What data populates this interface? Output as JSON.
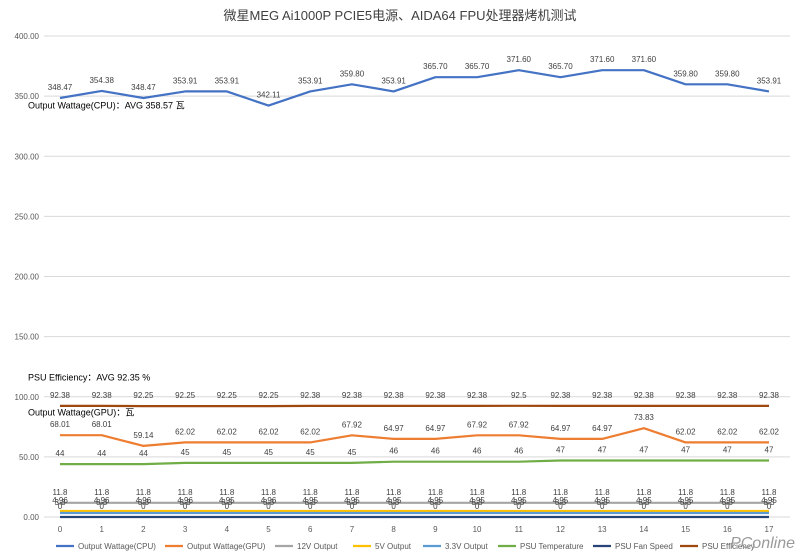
{
  "chart_data": {
    "type": "line",
    "title": "微星MEG Ai1000P PCIE5电源、AIDA64 FPU处理器烤机测试",
    "xlabel": "",
    "ylabel": "",
    "x": [
      0,
      1,
      2,
      3,
      4,
      5,
      6,
      7,
      8,
      9,
      10,
      11,
      12,
      13,
      14,
      15,
      16,
      17
    ],
    "ylim": [
      0,
      400
    ],
    "yticks": [
      "0.00",
      "50.00",
      "100.00",
      "150.00",
      "200.00",
      "250.00",
      "300.00",
      "350.00",
      "400.00"
    ],
    "grid": true,
    "legend_position": "bottom",
    "series": [
      {
        "name": "Output Wattage(CPU)",
        "color": "#4472c4",
        "show_labels": true,
        "label_pos": "above",
        "labels": [
          "348.47",
          "354.38",
          "348.47",
          "353.91",
          "353.91",
          "342.11",
          "353.91",
          "359.80",
          "353.91",
          "365.70",
          "365.70",
          "371.60",
          "365.70",
          "371.60",
          "371.60",
          "359.80",
          "359.80",
          "353.91"
        ],
        "values": [
          348.47,
          354.38,
          348.47,
          353.91,
          353.91,
          342.11,
          353.91,
          359.8,
          353.91,
          365.7,
          365.7,
          371.6,
          365.7,
          371.6,
          371.6,
          359.8,
          359.8,
          353.91
        ]
      },
      {
        "name": "Output Wattage(GPU)",
        "color": "#ed7d31",
        "show_labels": true,
        "label_pos": "above",
        "labels": [
          "68.01",
          "68.01",
          "59.14",
          "62.02",
          "62.02",
          "62.02",
          "62.02",
          "67.92",
          "64.97",
          "64.97",
          "67.92",
          "67.92",
          "64.97",
          "64.97",
          "73.83",
          "62.02",
          "62.02",
          "62.02"
        ],
        "values": [
          68.01,
          68.01,
          59.14,
          62.02,
          62.02,
          62.02,
          62.02,
          67.92,
          64.97,
          64.97,
          67.92,
          67.92,
          64.97,
          64.97,
          73.83,
          62.02,
          62.02,
          62.02
        ]
      },
      {
        "name": "12V Output",
        "color": "#a5a5a5",
        "show_labels": true,
        "label_pos": "above",
        "labels": [
          "11.8",
          "11.8",
          "11.8",
          "11.8",
          "11.8",
          "11.8",
          "11.8",
          "11.8",
          "11.8",
          "11.8",
          "11.8",
          "11.8",
          "11.8",
          "11.8",
          "11.8",
          "11.8",
          "11.8",
          "11.8"
        ],
        "values": [
          11.8,
          11.8,
          11.8,
          11.8,
          11.8,
          11.8,
          11.8,
          11.8,
          11.8,
          11.8,
          11.8,
          11.8,
          11.8,
          11.8,
          11.8,
          11.8,
          11.8,
          11.8
        ]
      },
      {
        "name": "5V Output",
        "color": "#ffc000",
        "show_labels": true,
        "label_pos": "above",
        "labels": [
          "4.96",
          "4.96",
          "4.96",
          "4.96",
          "4.95",
          "4.96",
          "4.95",
          "4.95",
          "4.95",
          "4.95",
          "4.95",
          "4.95",
          "4.95",
          "4.95",
          "4.95",
          "4.95",
          "4.95",
          "4.95"
        ],
        "values": [
          4.96,
          4.96,
          4.96,
          4.96,
          4.95,
          4.96,
          4.95,
          4.95,
          4.95,
          4.95,
          4.95,
          4.95,
          4.95,
          4.95,
          4.95,
          4.95,
          4.95,
          4.95
        ]
      },
      {
        "name": "3.3V Output",
        "color": "#5b9bd5",
        "show_labels": true,
        "label_pos": "above",
        "labels": [
          "3.3",
          "3.3",
          "3.3",
          "3.3",
          "3.3",
          "3.3",
          "3.3",
          "3.3",
          "3.3",
          "3.3",
          "3.3",
          "3.3",
          "3.3",
          "3.3",
          "3.3",
          "3.3",
          "3.3",
          "3.3"
        ],
        "values": [
          3.3,
          3.3,
          3.3,
          3.3,
          3.3,
          3.3,
          3.3,
          3.3,
          3.3,
          3.3,
          3.3,
          3.3,
          3.3,
          3.3,
          3.3,
          3.3,
          3.3,
          3.3
        ]
      },
      {
        "name": "PSU Temperature",
        "color": "#70ad47",
        "show_labels": true,
        "label_pos": "above",
        "labels": [
          "44",
          "44",
          "44",
          "45",
          "45",
          "45",
          "45",
          "45",
          "46",
          "46",
          "46",
          "46",
          "47",
          "47",
          "47",
          "47",
          "47",
          "47"
        ],
        "values": [
          44,
          44,
          44,
          45,
          45,
          45,
          45,
          45,
          46,
          46,
          46,
          46,
          47,
          47,
          47,
          47,
          47,
          47
        ]
      },
      {
        "name": "PSU Fan Speed",
        "color": "#264478",
        "show_labels": true,
        "label_pos": "above",
        "labels": [
          "0",
          "0",
          "0",
          "0",
          "0",
          "0",
          "0",
          "0",
          "0",
          "0",
          "0",
          "0",
          "0",
          "0",
          "0",
          "0",
          "0",
          "0"
        ],
        "values": [
          0,
          0,
          0,
          0,
          0,
          0,
          0,
          0,
          0,
          0,
          0,
          0,
          0,
          0,
          0,
          0,
          0,
          0
        ]
      },
      {
        "name": "PSU Efficiency",
        "color": "#9e480e",
        "show_labels": true,
        "label_pos": "above",
        "labels": [
          "92.38",
          "92.38",
          "92.25",
          "92.25",
          "92.25",
          "92.25",
          "92.38",
          "92.38",
          "92.38",
          "92.38",
          "92.38",
          "92.5",
          "92.38",
          "92.38",
          "92.38",
          "92.38",
          "92.38",
          "92.38"
        ],
        "values": [
          92.38,
          92.38,
          92.25,
          92.25,
          92.25,
          92.25,
          92.38,
          92.38,
          92.38,
          92.38,
          92.38,
          92.5,
          92.38,
          92.38,
          92.38,
          92.38,
          92.38,
          92.38
        ]
      }
    ],
    "annotations": [
      {
        "text": "Output Wattage(CPU)：AVG 358.57 瓦",
        "y": 342
      },
      {
        "text": "PSU Efficiency：AVG 92.35 %",
        "y": 116
      },
      {
        "text": "Output Wattage(GPU)：瓦",
        "y": 87
      }
    ]
  },
  "watermark": "PConline"
}
